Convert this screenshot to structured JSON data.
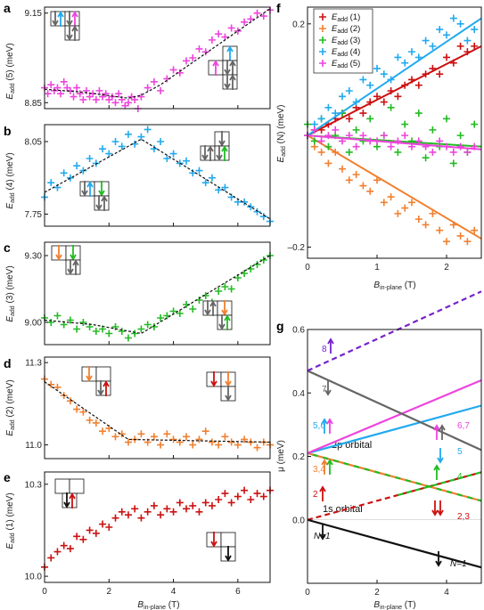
{
  "colors": {
    "magenta": "#ee44dd",
    "blue": "#22aaee",
    "green": "#22bb22",
    "orange": "#f08030",
    "red": "#cc1111",
    "purple": "#7722cc",
    "gray": "#666666",
    "black": "#111111"
  },
  "labels": {
    "panel_a": "a",
    "panel_b": "b",
    "panel_c": "c",
    "panel_d": "d",
    "panel_e": "e",
    "panel_f": "f",
    "panel_g": "g",
    "ylabel_a": "E",
    "ylabel_a_sub": "add",
    "ylabel_a_tail": " (5) (meV)",
    "ylabel_b": "E",
    "ylabel_b_sub": "add",
    "ylabel_b_tail": " (4) (meV)",
    "ylabel_c": "E",
    "ylabel_c_sub": "add",
    "ylabel_c_tail": " (3) (meV)",
    "ylabel_d": "E",
    "ylabel_d_sub": "add",
    "ylabel_d_tail": " (2) (meV)",
    "ylabel_e": "E",
    "ylabel_e_sub": "add",
    "ylabel_e_tail": " (1) (meV)",
    "ylabel_f": "E",
    "ylabel_f_sub": "add",
    "ylabel_f_tail": " (N) (meV)",
    "ylabel_g": "μ (meV)",
    "xlabel": "B",
    "xlabel_sub": "in-plane",
    "xlabel_tail": " (T)",
    "g_2p": "2p orbital",
    "g_1s": "1s orbital",
    "g_8": "8",
    "g_7": "7",
    "g_56": "5,6",
    "g_67": "6,7",
    "g_5": "5",
    "g_34": "3,4",
    "g_4": "4",
    "g_2": "2",
    "g_23": "2,3",
    "g_N1_left": "N=1",
    "g_N1_right": "N=1"
  },
  "legend_f": [
    {
      "name": "E",
      "sub": "add",
      "tail": " (1)",
      "color": "#cc1111"
    },
    {
      "name": "E",
      "sub": "add",
      "tail": " (2)",
      "color": "#f08030"
    },
    {
      "name": "E",
      "sub": "add",
      "tail": " (3)",
      "color": "#22bb22"
    },
    {
      "name": "E",
      "sub": "add",
      "tail": " (4)",
      "color": "#22aaee"
    },
    {
      "name": "E",
      "sub": "add",
      "tail": " (5)",
      "color": "#ee44dd"
    }
  ],
  "chart_data": [
    {
      "panel": "a",
      "type": "scatter",
      "color": "#ee44dd",
      "ylabel": "Eadd (5) (meV)",
      "xlim": [
        0,
        7
      ],
      "ylim": [
        8.83,
        9.17
      ],
      "yticks": [
        8.85,
        9.15
      ],
      "yticklabels": [
        "8.85",
        "9.15"
      ],
      "x": [
        0.0,
        0.1,
        0.2,
        0.3,
        0.4,
        0.5,
        0.6,
        0.7,
        0.8,
        0.9,
        1.0,
        1.1,
        1.2,
        1.3,
        1.4,
        1.5,
        1.6,
        1.7,
        1.8,
        1.9,
        2.0,
        2.1,
        2.2,
        2.3,
        2.4,
        2.5,
        2.6,
        2.7,
        2.8,
        2.9,
        3.0,
        3.2,
        3.4,
        3.6,
        3.8,
        4.0,
        4.2,
        4.4,
        4.6,
        4.8,
        5.0,
        5.2,
        5.4,
        5.6,
        5.8,
        6.0,
        6.2,
        6.4,
        6.6,
        6.8,
        7.0
      ],
      "y": [
        8.9,
        8.88,
        8.91,
        8.89,
        8.9,
        8.88,
        8.92,
        8.9,
        8.89,
        8.87,
        8.9,
        8.88,
        8.86,
        8.89,
        8.87,
        8.88,
        8.86,
        8.89,
        8.87,
        8.88,
        8.86,
        8.87,
        8.85,
        8.88,
        8.86,
        8.84,
        8.85,
        8.87,
        8.86,
        8.83,
        8.87,
        8.9,
        8.92,
        8.89,
        8.93,
        8.96,
        8.95,
        8.99,
        9.0,
        9.03,
        9.02,
        9.06,
        9.08,
        9.07,
        9.1,
        9.09,
        9.12,
        9.13,
        9.15,
        9.14,
        9.16
      ],
      "fit_x": [
        0,
        1.2,
        2.6,
        3.0,
        3.6,
        7.0
      ],
      "fit_y": [
        8.895,
        8.885,
        8.865,
        8.875,
        8.91,
        9.165
      ]
    },
    {
      "panel": "b",
      "type": "scatter",
      "color": "#22aaee",
      "ylabel": "Eadd (4) (meV)",
      "xlim": [
        0,
        7
      ],
      "ylim": [
        7.7,
        8.12
      ],
      "yticks": [
        7.75,
        8.05
      ],
      "yticklabels": [
        "7.75",
        "8.05"
      ],
      "x": [
        0.0,
        0.2,
        0.4,
        0.6,
        0.8,
        1.0,
        1.2,
        1.4,
        1.6,
        1.8,
        2.0,
        2.2,
        2.4,
        2.6,
        2.8,
        3.0,
        3.2,
        3.4,
        3.6,
        3.8,
        4.0,
        4.2,
        4.4,
        4.6,
        4.8,
        5.0,
        5.2,
        5.4,
        5.6,
        5.8,
        6.0,
        6.2,
        6.4,
        6.6,
        6.8,
        7.0
      ],
      "y": [
        7.82,
        7.88,
        7.86,
        7.92,
        7.9,
        7.95,
        7.93,
        7.98,
        7.96,
        8.02,
        8.0,
        8.05,
        8.03,
        8.08,
        8.04,
        8.07,
        8.1,
        8.02,
        8.05,
        7.98,
        8.0,
        7.96,
        7.97,
        7.92,
        7.93,
        7.88,
        7.9,
        7.85,
        7.86,
        7.82,
        7.8,
        7.8,
        7.78,
        7.76,
        7.74,
        7.72
      ],
      "fit_x": [
        0,
        3.0,
        7.0
      ],
      "fit_y": [
        7.84,
        8.06,
        7.73
      ]
    },
    {
      "panel": "c",
      "type": "scatter",
      "color": "#22bb22",
      "ylabel": "Eadd (3) (meV)",
      "xlim": [
        0,
        7
      ],
      "ylim": [
        8.9,
        9.36
      ],
      "yticks": [
        9.0,
        9.3
      ],
      "yticklabels": [
        "9.00",
        "9.30"
      ],
      "x": [
        0.0,
        0.2,
        0.4,
        0.6,
        0.8,
        1.0,
        1.2,
        1.4,
        1.6,
        1.8,
        2.0,
        2.2,
        2.4,
        2.6,
        2.8,
        3.0,
        3.2,
        3.4,
        3.6,
        3.8,
        4.0,
        4.2,
        4.4,
        4.6,
        4.8,
        5.0,
        5.2,
        5.4,
        5.6,
        5.8,
        6.0,
        6.2,
        6.4,
        6.6,
        6.8,
        7.0
      ],
      "y": [
        9.02,
        9.0,
        9.03,
        8.99,
        9.01,
        8.97,
        9.0,
        8.98,
        8.96,
        8.97,
        8.95,
        8.98,
        8.96,
        8.93,
        8.95,
        8.97,
        8.99,
        8.98,
        9.02,
        9.03,
        9.05,
        9.04,
        9.08,
        9.06,
        9.1,
        9.12,
        9.09,
        9.14,
        9.16,
        9.15,
        9.2,
        9.22,
        9.24,
        9.26,
        9.28,
        9.3
      ],
      "fit_x": [
        0,
        1.5,
        3.0,
        7.0
      ],
      "fit_y": [
        9.01,
        8.99,
        8.95,
        9.3
      ]
    },
    {
      "panel": "d",
      "type": "scatter",
      "color": "#f08030",
      "ylabel": "Eadd (2) (meV)",
      "xlim": [
        0,
        7
      ],
      "ylim": [
        10.95,
        11.32
      ],
      "yticks": [
        11.0,
        11.3
      ],
      "yticklabels": [
        "11.0",
        "11.3"
      ],
      "x": [
        0.0,
        0.2,
        0.4,
        0.6,
        0.8,
        1.0,
        1.2,
        1.4,
        1.6,
        1.8,
        2.0,
        2.2,
        2.4,
        2.6,
        2.8,
        3.0,
        3.2,
        3.4,
        3.6,
        3.8,
        4.0,
        4.2,
        4.4,
        4.6,
        4.8,
        5.0,
        5.2,
        5.4,
        5.6,
        5.8,
        6.0,
        6.2,
        6.4,
        6.6,
        6.8,
        7.0
      ],
      "y": [
        11.24,
        11.22,
        11.21,
        11.18,
        11.16,
        11.13,
        11.12,
        11.09,
        11.08,
        11.05,
        11.06,
        11.03,
        11.04,
        11.01,
        11.02,
        11.04,
        11.01,
        11.03,
        11.0,
        11.04,
        11.02,
        11.01,
        11.03,
        11.0,
        11.02,
        11.05,
        11.01,
        11.0,
        11.03,
        11.01,
        11.0,
        11.02,
        11.01,
        10.99,
        11.01,
        11.0
      ],
      "fit_x": [
        0,
        2.6,
        7.0
      ],
      "fit_y": [
        11.23,
        11.02,
        11.01
      ]
    },
    {
      "panel": "e",
      "type": "scatter",
      "color": "#cc1111",
      "ylabel": "Eadd (1) (meV)",
      "xlim": [
        0,
        7
      ],
      "ylim": [
        9.98,
        10.34
      ],
      "yticks": [
        10.0,
        10.3
      ],
      "yticklabels": [
        "10.0",
        "10.3"
      ],
      "xticks": [
        0,
        2,
        4,
        6
      ],
      "xticklabels": [
        "0",
        "2",
        "4",
        "6"
      ],
      "xlabel": "Bin-plane (T)",
      "x": [
        0.0,
        0.2,
        0.4,
        0.6,
        0.8,
        1.0,
        1.2,
        1.4,
        1.6,
        1.8,
        2.0,
        2.2,
        2.4,
        2.6,
        2.8,
        3.0,
        3.2,
        3.4,
        3.6,
        3.8,
        4.0,
        4.2,
        4.4,
        4.6,
        4.8,
        5.0,
        5.2,
        5.4,
        5.6,
        5.8,
        6.0,
        6.2,
        6.4,
        6.6,
        6.8,
        7.0
      ],
      "y": [
        10.03,
        10.06,
        10.08,
        10.1,
        10.09,
        10.13,
        10.12,
        10.15,
        10.14,
        10.17,
        10.16,
        10.19,
        10.21,
        10.2,
        10.22,
        10.19,
        10.21,
        10.23,
        10.2,
        10.22,
        10.21,
        10.24,
        10.22,
        10.23,
        10.21,
        10.24,
        10.23,
        10.25,
        10.27,
        10.24,
        10.26,
        10.28,
        10.25,
        10.27,
        10.26,
        10.28
      ]
    },
    {
      "panel": "f",
      "type": "scatter",
      "ylabel": "Eadd (N) (meV)",
      "xlim": [
        0,
        2.5
      ],
      "ylim": [
        -0.22,
        0.23
      ],
      "yticks": [
        -0.2,
        0.2
      ],
      "yticklabels": [
        "–0.2",
        "0.2"
      ],
      "xticks": [
        0,
        1,
        2
      ],
      "xticklabels": [
        "0",
        "1",
        "2"
      ],
      "xlabel": "Bin-plane (T)",
      "series": [
        {
          "name": "Eadd (1)",
          "color": "#cc1111",
          "x": [
            0.0,
            0.1,
            0.2,
            0.3,
            0.4,
            0.5,
            0.6,
            0.7,
            0.8,
            0.9,
            1.0,
            1.1,
            1.2,
            1.3,
            1.4,
            1.5,
            1.6,
            1.7,
            1.8,
            1.9,
            2.0,
            2.1,
            2.2,
            2.3,
            2.4
          ],
          "y": [
            0.0,
            0.01,
            0.01,
            0.02,
            0.03,
            0.04,
            0.03,
            0.05,
            0.04,
            0.06,
            0.07,
            0.06,
            0.08,
            0.07,
            0.09,
            0.1,
            0.09,
            0.11,
            0.12,
            0.11,
            0.14,
            0.13,
            0.16,
            0.15,
            0.16
          ],
          "fit": [
            0.0,
            0.16
          ]
        },
        {
          "name": "Eadd (2)",
          "color": "#f08030",
          "x": [
            0.0,
            0.1,
            0.2,
            0.3,
            0.4,
            0.5,
            0.6,
            0.7,
            0.8,
            0.9,
            1.0,
            1.1,
            1.2,
            1.3,
            1.4,
            1.5,
            1.6,
            1.7,
            1.8,
            1.9,
            2.0,
            2.1,
            2.2,
            2.3,
            2.4
          ],
          "y": [
            0.0,
            -0.02,
            -0.03,
            -0.05,
            -0.03,
            -0.06,
            -0.08,
            -0.07,
            -0.09,
            -0.1,
            -0.08,
            -0.12,
            -0.11,
            -0.14,
            -0.13,
            -0.12,
            -0.15,
            -0.16,
            -0.14,
            -0.17,
            -0.19,
            -0.16,
            -0.18,
            -0.19,
            -0.17
          ],
          "fit": [
            0.0,
            -0.185
          ]
        },
        {
          "name": "Eadd (3)",
          "color": "#22bb22",
          "x": [
            0.0,
            0.1,
            0.2,
            0.3,
            0.4,
            0.5,
            0.6,
            0.7,
            0.8,
            0.9,
            1.0,
            1.1,
            1.2,
            1.3,
            1.4,
            1.5,
            1.6,
            1.7,
            1.8,
            1.9,
            2.0,
            2.1,
            2.2,
            2.3,
            2.4
          ],
          "y": [
            0.02,
            -0.01,
            0.03,
            -0.02,
            0.0,
            0.04,
            -0.03,
            0.01,
            -0.01,
            0.03,
            -0.02,
            0.0,
            0.05,
            -0.03,
            0.02,
            -0.01,
            0.04,
            -0.04,
            0.01,
            -0.02,
            0.03,
            -0.05,
            0.0,
            -0.03,
            0.02
          ],
          "fit": [
            0.0,
            -0.02
          ]
        },
        {
          "name": "Eadd (4)",
          "color": "#22aaee",
          "x": [
            0.0,
            0.1,
            0.2,
            0.3,
            0.4,
            0.5,
            0.6,
            0.7,
            0.8,
            0.9,
            1.0,
            1.1,
            1.2,
            1.3,
            1.4,
            1.5,
            1.6,
            1.7,
            1.8,
            1.9,
            2.0,
            2.1,
            2.2,
            2.3,
            2.4
          ],
          "y": [
            0.0,
            0.02,
            0.03,
            0.05,
            0.04,
            0.07,
            0.08,
            0.06,
            0.1,
            0.09,
            0.12,
            0.11,
            0.1,
            0.14,
            0.13,
            0.15,
            0.14,
            0.17,
            0.16,
            0.19,
            0.18,
            0.21,
            0.2,
            0.17,
            0.19
          ],
          "fit": [
            0.0,
            0.21
          ]
        },
        {
          "name": "Eadd (5)",
          "color": "#ee44dd",
          "x": [
            0.0,
            0.1,
            0.2,
            0.3,
            0.4,
            0.5,
            0.6,
            0.7,
            0.8,
            0.9,
            1.0,
            1.1,
            1.2,
            1.3,
            1.4,
            1.5,
            1.6,
            1.7,
            1.8,
            1.9,
            2.0,
            2.1,
            2.2,
            2.3,
            2.4
          ],
          "y": [
            0.0,
            0.01,
            -0.01,
            0.0,
            0.01,
            -0.01,
            0.0,
            -0.02,
            0.0,
            -0.01,
            -0.01,
            0.0,
            -0.02,
            -0.01,
            0.0,
            -0.02,
            -0.01,
            -0.02,
            -0.03,
            -0.01,
            -0.02,
            -0.03,
            -0.02,
            -0.03,
            -0.02
          ],
          "fit": [
            0.0,
            -0.025
          ]
        }
      ]
    },
    {
      "panel": "g",
      "type": "line",
      "ylabel": "μ (meV)",
      "xlim": [
        0,
        5
      ],
      "ylim": [
        -0.2,
        0.6
      ],
      "yticks": [
        0.0,
        0.2,
        0.4,
        0.6
      ],
      "yticklabels": [
        "0.0",
        "0.2",
        "0.4",
        "0.6"
      ],
      "xticks": [
        0,
        2,
        4
      ],
      "xticklabels": [
        "0",
        "2",
        "4"
      ],
      "xlabel": "Bin-plane (T)",
      "series": [
        {
          "label": "N=1",
          "color": "#111111",
          "dash": false,
          "y0": 0.0,
          "slope": -0.03
        },
        {
          "label": "2,3",
          "color": "#cc1111",
          "dash": true,
          "y0": 0.0,
          "slope": 0.03
        },
        {
          "label": "3,4",
          "colors": [
            "#f08030",
            "#22bb22"
          ],
          "dash": true,
          "y0": 0.21,
          "slope": -0.03
        },
        {
          "label": "4",
          "color": "#22bb22",
          "dash": true,
          "y0": 0.0,
          "slope": 0.03,
          "start": 2.6
        },
        {
          "label": "5",
          "color": "#22aaee",
          "dash": false,
          "y0": 0.21,
          "slope": 0.03
        },
        {
          "label": "5,6",
          "color": "#ee44dd",
          "dash": false,
          "y0": 0.21,
          "slope": 0.046
        },
        {
          "label": "6,7",
          "color": "#666666",
          "dash": false,
          "y0": 0.47,
          "slope": -0.05
        },
        {
          "label": "8",
          "color": "#7722cc",
          "dash": true,
          "y0": 0.47,
          "slope": 0.05
        }
      ]
    }
  ]
}
